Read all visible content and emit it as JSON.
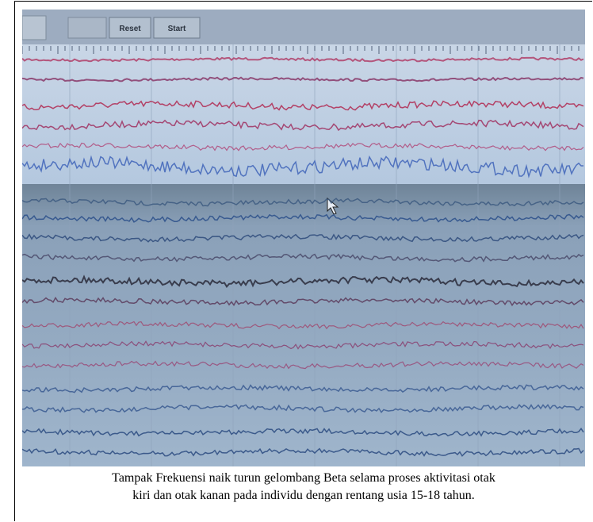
{
  "toolbar": {
    "buttons": [
      "Reset",
      "Start"
    ]
  },
  "caption": {
    "lines": [
      "Tampak Frekuensi naik turun gelombang Beta selama proses aktivitasi otak",
      "kiri dan otak kanan pada individu dengan rentang usia 15-18 tahun."
    ]
  }
}
